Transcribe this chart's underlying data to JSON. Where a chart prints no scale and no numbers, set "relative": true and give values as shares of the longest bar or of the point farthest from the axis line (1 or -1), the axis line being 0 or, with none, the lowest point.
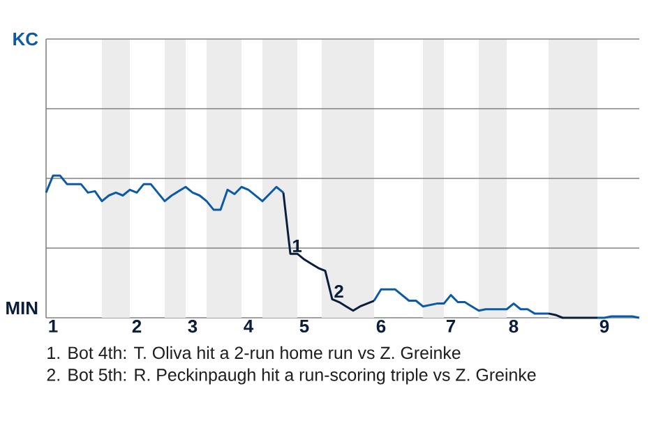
{
  "chart_data": {
    "type": "line",
    "relative": true,
    "categories": [
      null,
      "1",
      null,
      null,
      null,
      null,
      null,
      null,
      null,
      null,
      null,
      null,
      null,
      "2",
      null,
      null,
      null,
      null,
      null,
      null,
      null,
      "3",
      null,
      null,
      null,
      null,
      null,
      null,
      null,
      "4",
      null,
      null,
      null,
      null,
      null,
      null,
      null,
      "5",
      null,
      null,
      null,
      null,
      null,
      null,
      null,
      null,
      null,
      null,
      "6",
      null,
      null,
      null,
      null,
      null,
      null,
      null,
      null,
      null,
      "7",
      null,
      null,
      null,
      null,
      null,
      null,
      null,
      null,
      "8",
      null,
      null,
      null,
      null,
      null,
      null,
      null,
      null,
      null,
      null,
      null,
      null,
      "9",
      null,
      null,
      null,
      null,
      null
    ],
    "marker": "none",
    "line_style": "solid",
    "ref_lines": [
      {
        "axis": "y",
        "value": 0.49,
        "color": "#828282"
      },
      {
        "axis": "y",
        "value": 0.98,
        "color": "#828282"
      },
      {
        "axis": "y",
        "value": 1.47,
        "color": "#828282"
      },
      {
        "axis": "y",
        "value": 1.96,
        "color": "#828282"
      }
    ],
    "series": [
      {
        "color": "#0a5aa6",
        "values": [
          0.88,
          1,
          1,
          0.94,
          0.94,
          0.94,
          0.88,
          0.89,
          0.82,
          0.86,
          0.88,
          0.86,
          0.9,
          0.88,
          0.94,
          0.94,
          0.88,
          0.82,
          0.86,
          0.89,
          0.92,
          0.88,
          0.86,
          0.82,
          0.76,
          0.76,
          0.9,
          0.87,
          0.92,
          0.9,
          0.86,
          0.82,
          0.87,
          0.92,
          0.88,
          null,
          null,
          null,
          null,
          null,
          null,
          null,
          null,
          null,
          null,
          null,
          null,
          0.12,
          0.2,
          0.2,
          0.2,
          0.16,
          0.12,
          0.12,
          0.08,
          0.09,
          0.1,
          0.1,
          0.16,
          0.11,
          0.11,
          0.08,
          0.05,
          0.06,
          0.06,
          0.06,
          0.06,
          0.1,
          0.06,
          0.06,
          0.03,
          0.03,
          0.03,
          null,
          null,
          null,
          null,
          null,
          null,
          0,
          0,
          0.01,
          0.01,
          0.01,
          0.01,
          0
        ]
      },
      {
        "color": "#0a1e3c",
        "values": [
          null,
          null,
          null,
          null,
          null,
          null,
          null,
          null,
          null,
          null,
          null,
          null,
          null,
          null,
          null,
          null,
          null,
          null,
          null,
          null,
          null,
          null,
          null,
          null,
          null,
          null,
          null,
          null,
          null,
          null,
          null,
          null,
          null,
          null,
          0.88,
          0.45,
          0.45,
          0.41,
          0.38,
          0.35,
          0.33,
          0.13,
          0.11,
          0.08,
          0.05,
          0.08,
          0.1,
          0.12,
          null,
          null,
          null,
          null,
          null,
          null,
          null,
          null,
          null,
          null,
          null,
          null,
          null,
          null,
          null,
          null,
          null,
          null,
          null,
          null,
          null,
          null,
          null,
          null,
          0.03,
          0.02,
          0,
          0,
          0,
          0,
          0,
          0,
          null,
          null,
          null,
          null,
          null,
          null
        ]
      }
    ],
    "annotations": [
      "KC",
      "MIN",
      {
        "text": "1",
        "y": 0.45
      },
      {
        "text": "2",
        "y": 0.13
      },
      "1. Bot 4th: T. Oliva hit a 2-run home run vs Z. Greinke",
      "2. Bot 5th: R. Peckinpaugh hit a run-scoring triple vs Z. Greinke"
    ]
  }
}
